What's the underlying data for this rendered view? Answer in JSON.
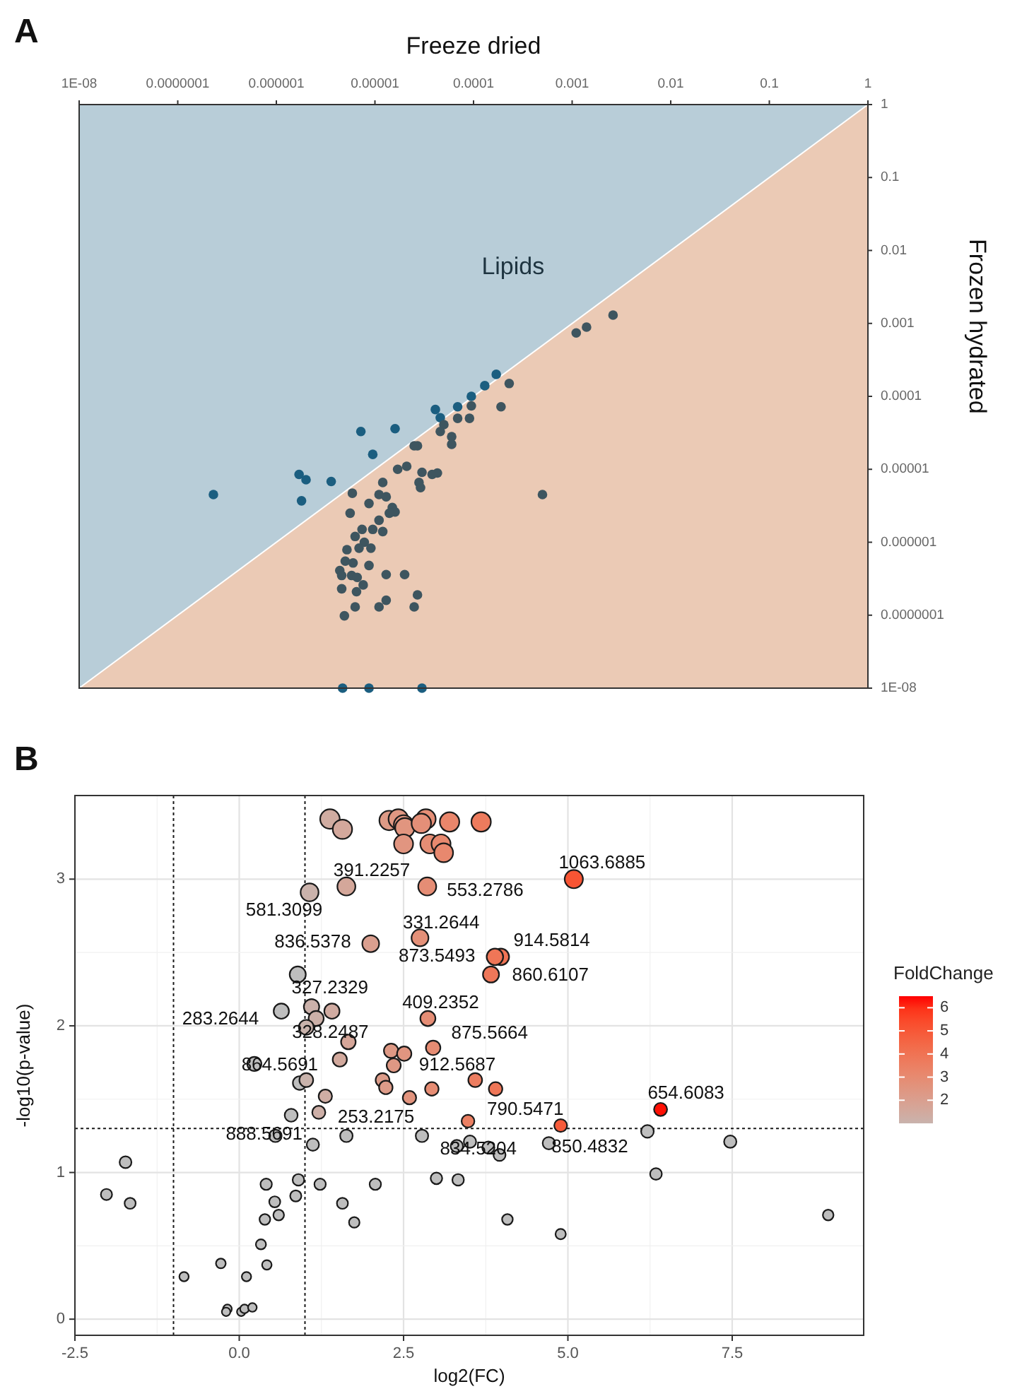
{
  "chart_data": [
    {
      "type": "scatter",
      "title": "A",
      "xlabel": "Freeze dried",
      "ylabel": "Frozen hydrated",
      "log": "xy",
      "xlim": [
        1e-08,
        1
      ],
      "ylim": [
        1e-08,
        1
      ],
      "xticks": [
        {
          "value": 1e-08,
          "label": "1E-08"
        },
        {
          "value": 1e-07,
          "label": "0.0000001"
        },
        {
          "value": 1e-06,
          "label": "0.000001"
        },
        {
          "value": 1e-05,
          "label": "0.00001"
        },
        {
          "value": 0.0001,
          "label": "0.0001"
        },
        {
          "value": 0.001,
          "label": "0.001"
        },
        {
          "value": 0.01,
          "label": "0.01"
        },
        {
          "value": 0.1,
          "label": "0.1"
        },
        {
          "value": 1,
          "label": "1"
        }
      ],
      "yticks": [
        {
          "value": 1e-08,
          "label": "1E-08"
        },
        {
          "value": 1e-07,
          "label": "0.0000001"
        },
        {
          "value": 1e-06,
          "label": "0.000001"
        },
        {
          "value": 1e-05,
          "label": "0.00001"
        },
        {
          "value": 0.0001,
          "label": "0.0001"
        },
        {
          "value": 0.001,
          "label": "0.001"
        },
        {
          "value": 0.01,
          "label": "0.01"
        },
        {
          "value": 0.1,
          "label": "0.1"
        },
        {
          "value": 1,
          "label": "1"
        }
      ],
      "annotations": [
        "Lipids"
      ],
      "series": [
        {
          "type": "area",
          "color": "#ebcab5",
          "x": [
            1e-08,
            1
          ],
          "values": [
            1e-08,
            1
          ]
        },
        {
          "marker": "circle",
          "color": "#1b5e80",
          "x": [
            2.3e-07,
            1.7e-06,
            2e-06,
            1.8e-06,
            3.6e-06,
            7.2e-06,
            9.5e-06,
            1.6e-05,
            4.1e-05,
            4.6e-05,
            6.9e-05,
            9.5e-05,
            0.00013,
            0.00017,
            4.7e-06,
            8.7e-06,
            3e-05
          ],
          "values": [
            4.5e-06,
            8.5e-06,
            7.2e-06,
            3.7e-06,
            6.8e-06,
            3.3e-05,
            1.6e-05,
            3.6e-05,
            6.6e-05,
            5.1e-05,
            7.2e-05,
            0.0001,
            0.00014,
            0.0002,
            1e-08,
            1e-08,
            1e-08
          ]
        },
        {
          "marker": "circle",
          "color": "#3e555f",
          "x": [
            0.0026,
            0.0014,
            0.0011,
            0.00023,
            0.00019,
            9.5e-05,
            9.1e-05,
            6.9e-05,
            6e-05,
            6e-05,
            5e-05,
            4.6e-05,
            2.7e-05,
            2.5e-05,
            2.1e-05,
            1.7e-05,
            3e-05,
            3.8e-05,
            4.3e-05,
            2.8e-05,
            2.9e-05,
            0.0005,
            1.2e-05,
            5.9e-06,
            1.1e-05,
            8.7e-06,
            1.3e-05,
            1.5e-05,
            1.6e-05,
            1.4e-05,
            1.1e-05,
            5.6e-06,
            9.5e-06,
            7.4e-06,
            6.3e-06,
            1.2e-05,
            7.8e-06,
            6.9e-06,
            9.1e-06,
            5.2e-06,
            8.7e-06,
            6e-06,
            5e-06,
            4.4e-06,
            5.8e-06,
            4.6e-06,
            6.6e-06,
            1.3e-05,
            2e-05,
            7.6e-06,
            4.6e-06,
            6.5e-06,
            2.7e-05,
            1.3e-05,
            6.3e-06,
            1.1e-05,
            2.5e-05,
            4.9e-06
          ],
          "values": [
            0.0013,
            0.00089,
            0.00074,
            0.00015,
            7.2e-05,
            7.4e-05,
            5e-05,
            5e-05,
            2.8e-05,
            2.2e-05,
            4.1e-05,
            3.3e-05,
            2.1e-05,
            2.1e-05,
            1.1e-05,
            1e-05,
            9.1e-06,
            8.5e-06,
            8.9e-06,
            6.6e-06,
            5.6e-06,
            4.5e-06,
            6.6e-06,
            4.7e-06,
            4.5e-06,
            3.4e-06,
            4.2e-06,
            3e-06,
            2.6e-06,
            2.5e-06,
            2e-06,
            2.5e-06,
            1.5e-06,
            1.5e-06,
            1.2e-06,
            1.4e-06,
            1e-06,
            8.3e-07,
            8.3e-07,
            7.9e-07,
            4.8e-07,
            5.2e-07,
            5.5e-07,
            4.1e-07,
            3.5e-07,
            3.5e-07,
            3.3e-07,
            3.6e-07,
            3.6e-07,
            2.6e-07,
            2.3e-07,
            2.1e-07,
            1.9e-07,
            1.6e-07,
            1.3e-07,
            1.3e-07,
            1.3e-07,
            9.8e-08
          ]
        }
      ]
    },
    {
      "type": "bubble",
      "title": "B",
      "xlabel": "log2(FC)",
      "ylabel": "-log10(p-value)",
      "clabel": "FoldChange",
      "marker": "circle",
      "grid": true,
      "xlim": [
        -2.5,
        9.5
      ],
      "ylim": [
        -0.11,
        3.57
      ],
      "xticks": [
        {
          "value": -2.5,
          "label": "-2.5"
        },
        {
          "value": 0,
          "label": "0.0"
        },
        {
          "value": 2.5,
          "label": "2.5"
        },
        {
          "value": 5,
          "label": "5.0"
        },
        {
          "value": 7.5,
          "label": "7.5"
        }
      ],
      "yticks": [
        0,
        1,
        2,
        3
      ],
      "clim": [
        1,
        6.5
      ],
      "cticks": [
        2,
        3,
        4,
        5,
        6
      ],
      "ref_lines": [
        {
          "axis": "x",
          "value": -1,
          "line_style": "dotted"
        },
        {
          "axis": "x",
          "value": 1,
          "line_style": "dotted"
        },
        {
          "axis": "y",
          "value": 1.3,
          "line_style": "dotted"
        }
      ],
      "series": [
        {
          "sizes": [
            1,
            0.98,
            0.99,
            1,
            0.99,
            0.98,
            1,
            0.99,
            0.99,
            0.99,
            0.95,
            0.95,
            0.95,
            0.93,
            0.85,
            0.85,
            0.87,
            0.84,
            0.75,
            0.74,
            0.71,
            0.71,
            0.68,
            0.68,
            0.62,
            0.61,
            0.61,
            0.6,
            0.58,
            0.6,
            0.55,
            0.56,
            0.54,
            0.54,
            0.53,
            0.52,
            0.52,
            0.49,
            0.5,
            0.5,
            0.48,
            0.47,
            0.48,
            0.5,
            0.48,
            0.47,
            0.45,
            0.44,
            0.43,
            0.43,
            0.45,
            0.41,
            0.41,
            0.4,
            0.41,
            0.4,
            0.4,
            0.39,
            0.38,
            0.4,
            0.42,
            0.4,
            0.36,
            0.37,
            0.33,
            0.32,
            0.34,
            0.35,
            0.34,
            0.34,
            0.35,
            0.35,
            0.33,
            0.32,
            0.32,
            0.3,
            0.3,
            0.29,
            0.3,
            0.28,
            0.3,
            0.27,
            0.25,
            0.24,
            0.23,
            0.23,
            0.2,
            0.19,
            0.19,
            0.2,
            0.2
          ],
          "x": [
            1.38,
            1.57,
            2.28,
            2.42,
            2.5,
            2.52,
            2.84,
            2.77,
            3.2,
            3.68,
            2.5,
            2.9,
            3.07,
            3.11,
            1.63,
            2.86,
            5.09,
            1.07,
            2.75,
            2.0,
            3.98,
            3.89,
            3.83,
            0.89,
            1.1,
            0.64,
            1.41,
            1.17,
            1.02,
            2.87,
            2.95,
            1.66,
            2.31,
            2.51,
            1.53,
            0.23,
            2.35,
            0.92,
            1.02,
            2.18,
            2.23,
            2.59,
            2.93,
            3.59,
            3.9,
            1.31,
            1.21,
            0.79,
            3.48,
            4.89,
            6.41,
            1.63,
            0.55,
            1.12,
            2.78,
            3.31,
            3.51,
            3.79,
            3.96,
            4.71,
            6.21,
            7.47,
            6.34,
            -1.73,
            -2.02,
            -1.66,
            0.41,
            0.9,
            1.23,
            2.07,
            3.0,
            3.33,
            0.86,
            0.54,
            1.57,
            0.6,
            0.39,
            1.75,
            4.08,
            4.89,
            8.96,
            0.33,
            -0.28,
            0.42,
            -0.84,
            0.11,
            -0.18,
            -0.2,
            0.03,
            0.08,
            0.2
          ],
          "values": [
            3.41,
            3.34,
            3.4,
            3.41,
            3.37,
            3.35,
            3.41,
            3.38,
            3.39,
            3.39,
            3.24,
            3.24,
            3.24,
            3.18,
            2.95,
            2.95,
            3.0,
            2.91,
            2.6,
            2.56,
            2.47,
            2.47,
            2.35,
            2.35,
            2.13,
            2.1,
            2.1,
            2.05,
            1.99,
            2.05,
            1.85,
            1.89,
            1.83,
            1.81,
            1.77,
            1.74,
            1.73,
            1.61,
            1.63,
            1.63,
            1.58,
            1.51,
            1.57,
            1.63,
            1.57,
            1.52,
            1.41,
            1.39,
            1.35,
            1.32,
            1.43,
            1.25,
            1.25,
            1.19,
            1.25,
            1.18,
            1.21,
            1.17,
            1.12,
            1.2,
            1.28,
            1.21,
            0.99,
            1.07,
            0.85,
            0.79,
            0.92,
            0.95,
            0.92,
            0.92,
            0.96,
            0.95,
            0.84,
            0.8,
            0.79,
            0.71,
            0.68,
            0.66,
            0.68,
            0.58,
            0.71,
            0.51,
            0.38,
            0.37,
            0.29,
            0.29,
            0.07,
            0.05,
            0.05,
            0.07,
            0.08
          ],
          "cvalues": [
            1.38,
            1.57,
            2.28,
            2.42,
            2.5,
            2.52,
            2.84,
            2.77,
            3.2,
            3.68,
            2.5,
            2.9,
            3.07,
            3.11,
            1.63,
            2.86,
            5.09,
            1.07,
            2.75,
            2.0,
            3.98,
            3.89,
            3.83,
            null,
            1.1,
            null,
            1.41,
            1.17,
            1.02,
            2.87,
            2.95,
            1.66,
            2.31,
            2.51,
            1.53,
            null,
            2.35,
            null,
            1.02,
            2.18,
            2.23,
            2.59,
            2.93,
            3.59,
            3.9,
            1.31,
            1.21,
            null,
            3.48,
            4.89,
            6.41,
            null,
            null,
            null,
            null,
            null,
            null,
            null,
            null,
            null,
            null,
            null,
            null,
            null,
            null,
            null,
            null,
            null,
            null,
            null,
            null,
            null,
            null,
            null,
            null,
            null,
            null,
            null,
            null,
            null,
            null,
            null,
            null,
            null,
            null,
            null,
            null,
            null,
            null,
            null,
            null
          ]
        }
      ],
      "annotations": [
        {
          "text": "1063.6885",
          "x": 5.09,
          "y": 3.0
        },
        {
          "text": "391.2257",
          "x": 1.63,
          "y": 2.95
        },
        {
          "text": "553.2786",
          "x": 2.86,
          "y": 2.95
        },
        {
          "text": "581.3099",
          "x": 1.07,
          "y": 2.91
        },
        {
          "text": "331.2644",
          "x": 2.75,
          "y": 2.6
        },
        {
          "text": "836.5378",
          "x": 2.0,
          "y": 2.56
        },
        {
          "text": "914.5814",
          "x": 3.98,
          "y": 2.47
        },
        {
          "text": "873.5493",
          "x": 3.89,
          "y": 2.47
        },
        {
          "text": "860.6107",
          "x": 3.83,
          "y": 2.35
        },
        {
          "text": "327.2329",
          "x": 1.1,
          "y": 2.13
        },
        {
          "text": "283.2644",
          "x": 0.64,
          "y": 2.1
        },
        {
          "text": "328.2487",
          "x": 1.02,
          "y": 1.99
        },
        {
          "text": "409.2352",
          "x": 2.87,
          "y": 2.05
        },
        {
          "text": "875.5664",
          "x": 2.95,
          "y": 1.85
        },
        {
          "text": "864.5691",
          "x": 0.23,
          "y": 1.74
        },
        {
          "text": "912.5687",
          "x": 2.35,
          "y": 1.73
        },
        {
          "text": "888.5691",
          "x": 0.55,
          "y": 1.25
        },
        {
          "text": "253.2175",
          "x": 1.63,
          "y": 1.25
        },
        {
          "text": "790.5471",
          "x": 4.89,
          "y": 1.32
        },
        {
          "text": "654.6083",
          "x": 6.41,
          "y": 1.43
        },
        {
          "text": "834.5204",
          "x": 3.96,
          "y": 1.12
        },
        {
          "text": "850.4832",
          "x": 4.71,
          "y": 1.2
        }
      ]
    }
  ]
}
